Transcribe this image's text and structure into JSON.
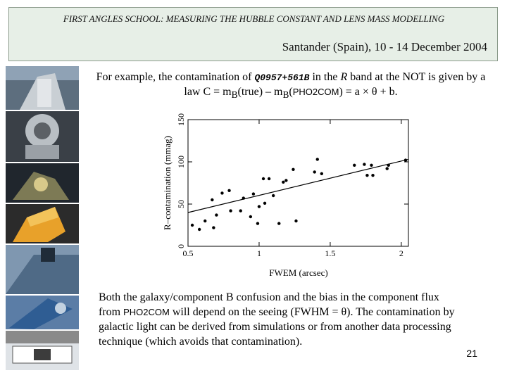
{
  "header": {
    "title": "FIRST ANGLES SCHOOL: MEASURING THE HUBBLE CONSTANT AND LENS MASS MODELLING",
    "subtitle": "Santander (Spain), 10 - 14 December 2004"
  },
  "intro": {
    "p1": "For example, the contamination of ",
    "object": "Q0957+561B",
    "p2": " in the ",
    "band": "R",
    "p3": " band at the NOT is given by a law C = m",
    "sub1": "B",
    "p4": "(true) – m",
    "sub2": "B",
    "p5": "(",
    "code": "PHO2COM",
    "p6": ") = a × θ + b."
  },
  "chart_data": {
    "type": "scatter",
    "xlabel": "FWEM (arcsec)",
    "ylabel": "R–contamination (mmag)",
    "xlim": [
      0.5,
      2.05
    ],
    "ylim": [
      0,
      150
    ],
    "xticks": [
      "0.5",
      "1",
      "1.5",
      "2"
    ],
    "xtick_values": [
      0.5,
      1.0,
      1.5,
      2.0
    ],
    "yticks": [
      "0",
      "50",
      "100",
      "150"
    ],
    "ytick_values": [
      0,
      50,
      100,
      150
    ],
    "points": [
      [
        0.53,
        25
      ],
      [
        0.58,
        20
      ],
      [
        0.62,
        30
      ],
      [
        0.67,
        55
      ],
      [
        0.68,
        22
      ],
      [
        0.7,
        37
      ],
      [
        0.74,
        63
      ],
      [
        0.79,
        66
      ],
      [
        0.8,
        42
      ],
      [
        0.87,
        42
      ],
      [
        0.89,
        57
      ],
      [
        0.94,
        35
      ],
      [
        0.96,
        62
      ],
      [
        0.99,
        27
      ],
      [
        1.0,
        47
      ],
      [
        1.03,
        80
      ],
      [
        1.04,
        51
      ],
      [
        1.07,
        80
      ],
      [
        1.1,
        60
      ],
      [
        1.14,
        27
      ],
      [
        1.17,
        76
      ],
      [
        1.19,
        78
      ],
      [
        1.24,
        91
      ],
      [
        1.26,
        30
      ],
      [
        1.39,
        88
      ],
      [
        1.41,
        103
      ],
      [
        1.44,
        86
      ],
      [
        1.67,
        96
      ],
      [
        1.74,
        97
      ],
      [
        1.76,
        84
      ],
      [
        1.79,
        96
      ],
      [
        1.8,
        84
      ],
      [
        1.9,
        92
      ],
      [
        1.91,
        96
      ],
      [
        2.03,
        102
      ]
    ],
    "fit_line": {
      "x": [
        0.5,
        2.05
      ],
      "y": [
        40,
        103
      ]
    }
  },
  "body_text": {
    "p1": "Both the galaxy/component B confusion and the bias in the component flux from ",
    "code": "PHO2COM",
    "p2": " will depend on the seeing (FWHM = θ). The contamination by galactic light can be derived from simulations or from another data processing technique (which avoids that contamination)."
  },
  "page_number": "21"
}
